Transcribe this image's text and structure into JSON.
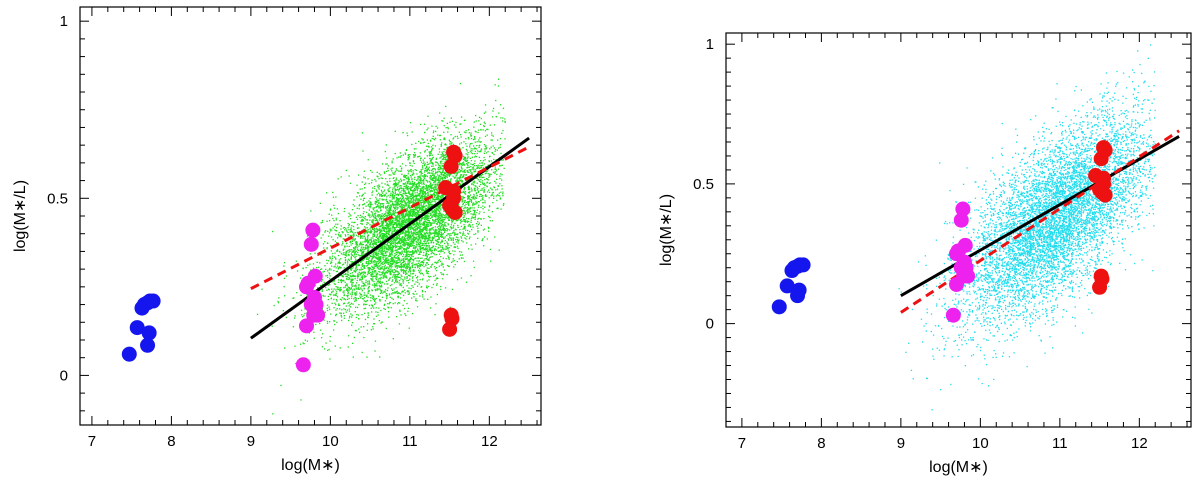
{
  "chart_data": [
    {
      "type": "scatter",
      "title": "",
      "xlabel": "log(M∗)",
      "ylabel": "log(M∗/L)",
      "xlim": [
        6.85,
        12.65
      ],
      "ylim": [
        -0.14,
        1.04
      ],
      "xticks": [
        7,
        8,
        9,
        10,
        11,
        12
      ],
      "yticks": [
        0,
        0.5,
        1
      ],
      "ytick_labels": [
        "0",
        "0.5",
        "1"
      ],
      "cloud": {
        "color": "#22dd22",
        "center": [
          11.0,
          0.43
        ],
        "spread": [
          0.55,
          0.09
        ],
        "slope": 0.15
      },
      "points": {
        "blue": {
          "color": "#1515ee",
          "x": [
            7.47,
            7.57,
            7.63,
            7.66,
            7.7,
            7.73,
            7.77,
            7.7,
            7.72
          ],
          "y": [
            0.06,
            0.135,
            0.19,
            0.2,
            0.205,
            0.21,
            0.21,
            0.085,
            0.12
          ]
        },
        "magenta": {
          "color": "#ee22ee",
          "x": [
            9.66,
            9.7,
            9.72,
            9.76,
            9.79,
            9.82,
            9.81,
            9.76,
            9.78,
            9.8,
            9.84,
            9.7
          ],
          "y": [
            0.03,
            0.14,
            0.26,
            0.2,
            0.17,
            0.2,
            0.28,
            0.37,
            0.41,
            0.22,
            0.17,
            0.25
          ]
        },
        "red": {
          "color": "#ee1111",
          "x": [
            11.45,
            11.52,
            11.55,
            11.57,
            11.55,
            11.53,
            11.5,
            11.57,
            11.53,
            11.5,
            11.52,
            11.55
          ],
          "y": [
            0.53,
            0.59,
            0.63,
            0.62,
            0.5,
            0.47,
            0.48,
            0.46,
            0.16,
            0.13,
            0.17,
            0.52
          ]
        }
      },
      "fit_solid": {
        "color": "#000000",
        "x": [
          9.0,
          12.5
        ],
        "y": [
          0.105,
          0.67
        ]
      },
      "fit_dashed": {
        "color": "#ee1111",
        "x": [
          9.0,
          12.5
        ],
        "y": [
          0.245,
          0.645
        ]
      }
    },
    {
      "type": "scatter",
      "title": "",
      "xlabel": "log(M∗)",
      "ylabel": "log(M∗/L)",
      "xlim": [
        6.8,
        12.65
      ],
      "ylim": [
        -0.37,
        1.04
      ],
      "xticks": [
        7,
        8,
        9,
        10,
        11,
        12
      ],
      "yticks": [
        0,
        0.5,
        1
      ],
      "ytick_labels": [
        "0",
        "0.5",
        "1"
      ],
      "cloud": {
        "color": "#22ddee",
        "center": [
          10.95,
          0.38
        ],
        "spread": [
          0.6,
          0.14
        ],
        "slope": 0.2
      },
      "points": {
        "blue": {
          "color": "#1515ee",
          "x": [
            7.47,
            7.57,
            7.63,
            7.66,
            7.7,
            7.73,
            7.77,
            7.7,
            7.72
          ],
          "y": [
            0.06,
            0.135,
            0.19,
            0.2,
            0.205,
            0.21,
            0.21,
            0.1,
            0.12
          ]
        },
        "magenta": {
          "color": "#ee22ee",
          "x": [
            9.66,
            9.7,
            9.72,
            9.76,
            9.79,
            9.82,
            9.81,
            9.76,
            9.78,
            9.8,
            9.84,
            9.7
          ],
          "y": [
            0.03,
            0.14,
            0.26,
            0.2,
            0.17,
            0.2,
            0.28,
            0.37,
            0.41,
            0.22,
            0.17,
            0.25
          ]
        },
        "red": {
          "color": "#ee1111",
          "x": [
            11.45,
            11.52,
            11.55,
            11.57,
            11.55,
            11.53,
            11.5,
            11.57,
            11.53,
            11.5,
            11.52,
            11.55
          ],
          "y": [
            0.53,
            0.59,
            0.63,
            0.62,
            0.5,
            0.47,
            0.48,
            0.46,
            0.16,
            0.13,
            0.17,
            0.52
          ]
        }
      },
      "fit_solid": {
        "color": "#000000",
        "x": [
          9.0,
          12.5
        ],
        "y": [
          0.1,
          0.67
        ]
      },
      "fit_dashed": {
        "color": "#ee1111",
        "x": [
          9.0,
          12.5
        ],
        "y": [
          0.04,
          0.69
        ]
      }
    }
  ]
}
